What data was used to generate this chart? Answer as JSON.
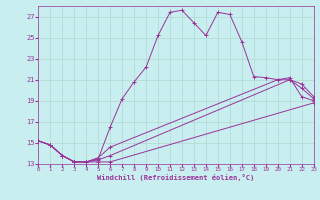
{
  "xlabel": "Windchill (Refroidissement éolien,°C)",
  "xlim": [
    0,
    23
  ],
  "ylim": [
    13,
    28
  ],
  "yticks": [
    13,
    15,
    17,
    19,
    21,
    23,
    25,
    27
  ],
  "xticks": [
    0,
    1,
    2,
    3,
    4,
    5,
    6,
    7,
    8,
    9,
    10,
    11,
    12,
    13,
    14,
    15,
    16,
    17,
    18,
    19,
    20,
    21,
    22,
    23
  ],
  "bg_color": "#c8eef0",
  "grid_color": "#b0d8d0",
  "line_color": "#993399",
  "lines": [
    {
      "x": [
        0,
        1,
        2,
        3,
        4,
        5,
        6,
        7,
        8,
        9,
        10,
        11,
        12,
        13,
        14,
        15,
        16,
        17,
        18,
        19,
        20,
        21,
        22,
        23
      ],
      "y": [
        15.2,
        14.8,
        13.8,
        13.2,
        13.2,
        13.5,
        16.5,
        19.2,
        20.8,
        22.2,
        25.2,
        27.4,
        27.6,
        26.4,
        25.2,
        27.4,
        27.2,
        24.6,
        21.3,
        21.2,
        21.0,
        21.2,
        19.4,
        19.0
      ],
      "has_markers": true
    },
    {
      "x": [
        0,
        1,
        2,
        3,
        4,
        5,
        6,
        23
      ],
      "y": [
        15.2,
        14.8,
        13.8,
        13.2,
        13.2,
        13.2,
        13.2,
        18.8
      ],
      "has_markers": true
    },
    {
      "x": [
        0,
        1,
        2,
        3,
        4,
        5,
        6,
        21,
        22,
        23
      ],
      "y": [
        15.2,
        14.8,
        13.8,
        13.2,
        13.2,
        13.4,
        13.8,
        21.0,
        20.2,
        19.2
      ],
      "has_markers": true
    },
    {
      "x": [
        0,
        1,
        2,
        3,
        4,
        5,
        6,
        20,
        21,
        22,
        23
      ],
      "y": [
        15.2,
        14.8,
        13.8,
        13.2,
        13.2,
        13.6,
        14.6,
        21.0,
        21.0,
        20.6,
        19.4
      ],
      "has_markers": true
    }
  ]
}
